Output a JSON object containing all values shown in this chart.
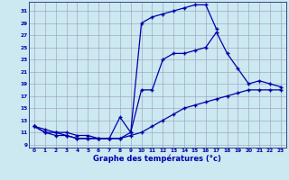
{
  "background_color": "#cce8f0",
  "grid_color": "#9999bb",
  "line_color": "#0000aa",
  "xlabel": "Graphe des températures (°c)",
  "xlabel_color": "#0000aa",
  "xlim": [
    -0.5,
    23.5
  ],
  "ylim": [
    8.5,
    32.5
  ],
  "yticks": [
    9,
    11,
    13,
    15,
    17,
    19,
    21,
    23,
    25,
    27,
    29,
    31
  ],
  "xticks": [
    0,
    1,
    2,
    3,
    4,
    5,
    6,
    7,
    8,
    9,
    10,
    11,
    12,
    13,
    14,
    15,
    16,
    17,
    18,
    19,
    20,
    21,
    22,
    23
  ],
  "series1_x": [
    0,
    1,
    2,
    3,
    4,
    5,
    6,
    7,
    8,
    9,
    10,
    11,
    12,
    13,
    14,
    15,
    16,
    17
  ],
  "series1_y": [
    12,
    11,
    10.5,
    10.5,
    10,
    10,
    10,
    10,
    10,
    11,
    29,
    30,
    30.5,
    31,
    31.5,
    32,
    32,
    28
  ],
  "series2_x": [
    0,
    1,
    2,
    3,
    4,
    5,
    6,
    7,
    8,
    9,
    10,
    11,
    12,
    13,
    14,
    15,
    16,
    17,
    18,
    19,
    20,
    21,
    22,
    23
  ],
  "series2_y": [
    12,
    11.5,
    11,
    11,
    10.5,
    10.5,
    10,
    10,
    10,
    10.5,
    11,
    12,
    13,
    14,
    15,
    15.5,
    16,
    16.5,
    17,
    17.5,
    18,
    18,
    18,
    18
  ],
  "series3_x": [
    0,
    1,
    2,
    3,
    4,
    5,
    6,
    7,
    8,
    9,
    10,
    11,
    12,
    13,
    14,
    15,
    16,
    17,
    18,
    19,
    20,
    21,
    22,
    23
  ],
  "series3_y": [
    12,
    11,
    11,
    10.5,
    10,
    10,
    10,
    10,
    13.5,
    11,
    18,
    18,
    23,
    24,
    24,
    24.5,
    25,
    27.5,
    24,
    21.5,
    19,
    19.5,
    19,
    18.5
  ]
}
